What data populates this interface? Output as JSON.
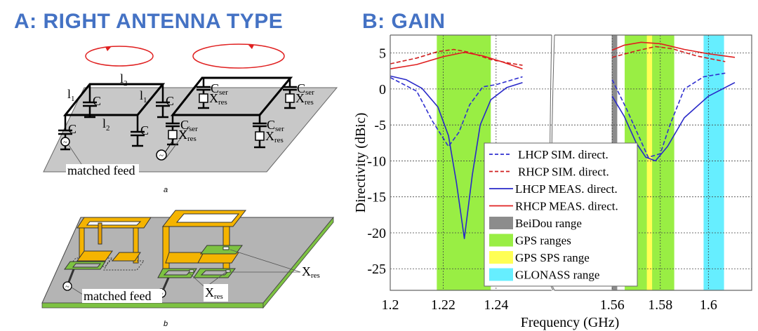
{
  "headings": {
    "panel_a": "A: RIGHT ANTENNA TYPE",
    "panel_b": "B: GAIN"
  },
  "diagram": {
    "label_a": "a",
    "label_b": "b",
    "l1": "l",
    "l1_sub": "1",
    "l2": "l",
    "l2_sub": "2",
    "c": "C",
    "cser": "C",
    "cser_sub": "ser",
    "xres": "X",
    "xres_sub": "res",
    "matched_feed": "matched feed",
    "source_symbol": "~",
    "colors": {
      "ground": "#c8c8c8",
      "structure": "#f5b400",
      "pad": "#7dc242",
      "rotation_arrow": "#e02020"
    }
  },
  "chart_data": {
    "type": "line",
    "title": "",
    "xlabel": "Frequency (GHz)",
    "ylabel": "Directivity (dBic)",
    "ylim": [
      -28,
      7.5
    ],
    "yticks": [
      5,
      0,
      -5,
      -10,
      -15,
      -20,
      -25
    ],
    "ytick_labels": [
      "5",
      "0",
      "-5",
      "-10",
      "-15",
      "-20",
      "-25"
    ],
    "broken_x_axis": true,
    "x_segments": [
      {
        "xlim": [
          1.2,
          1.261
        ],
        "xticks": [
          1.2,
          1.22,
          1.24
        ],
        "xtick_labels": [
          "1.2",
          "1.22",
          "1.24"
        ]
      },
      {
        "xlim": [
          1.536,
          1.618
        ],
        "xticks": [
          1.56,
          1.58,
          1.6
        ],
        "xtick_labels": [
          "1.56",
          "1.58",
          "1.6"
        ]
      }
    ],
    "grid": true,
    "legend_position": "bottom-center",
    "bands": [
      {
        "name": "BeiDou range",
        "segment": 1,
        "x": [
          1.5598,
          1.5621
        ],
        "color": "#8c8c8c"
      },
      {
        "name": "GPS ranges",
        "segment": 0,
        "x": [
          1.2176,
          1.238
        ],
        "color": "#99ee44"
      },
      {
        "name": "GPS ranges",
        "segment": 1,
        "x": [
          1.5652,
          1.5858
        ],
        "color": "#99ee44"
      },
      {
        "name": "GPS SPS range",
        "segment": 1,
        "x": [
          1.5744,
          1.5766
        ],
        "color": "#ffff55"
      },
      {
        "name": "GLONASS range",
        "segment": 1,
        "x": [
          1.598,
          1.6065
        ],
        "color": "#66eeff"
      }
    ],
    "series": [
      {
        "name": "LHCP SIM. direct.",
        "color": "#3030d0",
        "dash": true,
        "segments": [
          {
            "x": [
              1.2,
              1.21,
              1.216,
              1.222,
              1.226,
              1.23,
              1.235,
              1.24,
              1.25
            ],
            "y": [
              1.6,
              -0.3,
              -4.5,
              -8.0,
              -6.0,
              -2.2,
              0.3,
              0.6,
              1.7
            ]
          },
          {
            "x": [
              1.56,
              1.566,
              1.575,
              1.58,
              1.584,
              1.59,
              1.598,
              1.607
            ],
            "y": [
              1.3,
              -2.8,
              -9.5,
              -9.0,
              -5.0,
              0.0,
              1.7,
              2.2
            ]
          }
        ]
      },
      {
        "name": "RHCP SIM. direct.",
        "color": "#d02020",
        "dash": true,
        "segments": [
          {
            "x": [
              1.2,
              1.21,
              1.218,
              1.224,
              1.23,
              1.238,
              1.245,
              1.25
            ],
            "y": [
              3.5,
              4.3,
              5.2,
              5.5,
              5.1,
              4.1,
              3.6,
              3.3
            ]
          },
          {
            "x": [
              1.56,
              1.57,
              1.578,
              1.585,
              1.595,
              1.607
            ],
            "y": [
              4.4,
              5.3,
              5.9,
              5.6,
              4.6,
              3.8
            ]
          }
        ]
      },
      {
        "name": "LHCP MEAS. direct.",
        "color": "#2828c8",
        "solid": true,
        "segments": [
          {
            "x": [
              1.2,
              1.206,
              1.212,
              1.218,
              1.222,
              1.225,
              1.228,
              1.231,
              1.234,
              1.238,
              1.244,
              1.25
            ],
            "y": [
              1.8,
              1.3,
              0.1,
              -2.5,
              -6.5,
              -13.0,
              -20.8,
              -12.0,
              -5.0,
              -1.5,
              0.2,
              0.9
            ]
          },
          {
            "x": [
              1.56,
              1.565,
              1.57,
              1.574,
              1.578,
              1.583,
              1.59,
              1.6,
              1.611
            ],
            "y": [
              -1.0,
              -3.8,
              -7.5,
              -9.5,
              -10.0,
              -8.0,
              -4.0,
              -1.0,
              0.9
            ]
          }
        ]
      },
      {
        "name": "RHCP MEAS. direct.",
        "color": "#e02020",
        "solid": true,
        "segments": [
          {
            "x": [
              1.2,
              1.21,
              1.22,
              1.228,
              1.235,
              1.242,
              1.25
            ],
            "y": [
              2.8,
              3.4,
              4.5,
              5.1,
              4.6,
              3.8,
              2.8
            ]
          },
          {
            "x": [
              1.56,
              1.565,
              1.572,
              1.58,
              1.59,
              1.6,
              1.611
            ],
            "y": [
              5.4,
              6.1,
              6.5,
              6.3,
              5.5,
              4.9,
              4.4
            ]
          }
        ]
      }
    ],
    "legend": [
      {
        "label": "LHCP SIM. direct.",
        "kind": "dash",
        "color": "#3030d0"
      },
      {
        "label": "RHCP SIM. direct.",
        "kind": "dash",
        "color": "#d02020"
      },
      {
        "label": "LHCP MEAS. direct.",
        "kind": "line",
        "color": "#2828c8"
      },
      {
        "label": "RHCP MEAS. direct.",
        "kind": "line",
        "color": "#e02020"
      },
      {
        "label": "BeiDou range",
        "kind": "patch",
        "color": "#8c8c8c"
      },
      {
        "label": "GPS ranges",
        "kind": "patch",
        "color": "#99ee44"
      },
      {
        "label": "GPS SPS range",
        "kind": "patch",
        "color": "#ffff55"
      },
      {
        "label": "GLONASS range",
        "kind": "patch",
        "color": "#66eeff"
      }
    ]
  }
}
